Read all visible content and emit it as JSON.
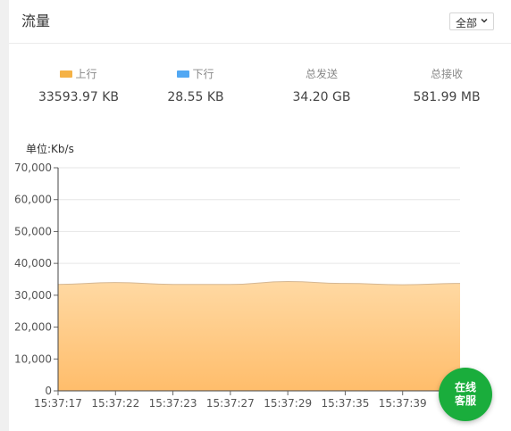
{
  "panel": {
    "title": "流量",
    "range_select": {
      "value": "全部"
    }
  },
  "stats": [
    {
      "label": "上行",
      "value": "33593.97 KB",
      "swatch": "#f5b246"
    },
    {
      "label": "下行",
      "value": "28.55 KB",
      "swatch": "#52a8f3"
    },
    {
      "label": "总发送",
      "value": "34.20 GB"
    },
    {
      "label": "总接收",
      "value": "581.99 MB"
    }
  ],
  "chart_data": {
    "type": "area",
    "unit_label": "单位:Kb/s",
    "x": [
      "15:37:17",
      "15:37:22",
      "15:37:23",
      "15:37:27",
      "15:37:29",
      "15:37:35",
      "15:37:39",
      "15:37:41"
    ],
    "x_tick_labels": [
      "15:37:17",
      "15:37:22",
      "15:37:23",
      "15:37:27",
      "15:37:29",
      "15:37:35",
      "15:37:39",
      "15:"
    ],
    "series": [
      {
        "name": "上行",
        "values": [
          33400,
          34000,
          33400,
          33400,
          34300,
          33700,
          33300,
          33700
        ],
        "color": "#f5b246"
      },
      {
        "name": "下行",
        "values": [
          0,
          0,
          0,
          0,
          0,
          0,
          0,
          0
        ],
        "color": "#52a8f3"
      }
    ],
    "ylim": [
      0,
      70000
    ],
    "y_ticks": [
      0,
      10000,
      20000,
      30000,
      40000,
      50000,
      60000,
      70000
    ],
    "y_tick_labels": [
      "0",
      "10,000",
      "20,000",
      "30,000",
      "40,000",
      "50,000",
      "60,000",
      "70,000"
    ],
    "grid": true,
    "legend": "top"
  },
  "chat_button": {
    "line1": "在线",
    "line2": "客服",
    "color": "#1aad3c"
  }
}
